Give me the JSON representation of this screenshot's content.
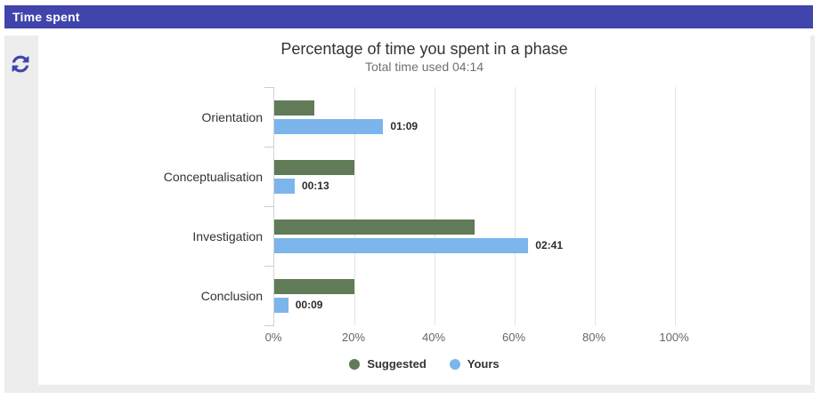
{
  "header": {
    "title": "Time spent"
  },
  "toolbar": {
    "refresh_icon": "refresh-icon"
  },
  "colors": {
    "header_bg": "#4044ab",
    "accent": "#4044ab",
    "panel_gray": "#ededed",
    "suggested": "#617b58",
    "yours": "#7cb5ec",
    "gridline": "#e4e4e4",
    "axis_line": "#d4d4d4"
  },
  "chart_data": {
    "type": "bar",
    "title": "Percentage of time you spent in a phase",
    "subtitle": "Total time used 04:14",
    "total_time": "04:14",
    "categories": [
      "Orientation",
      "Conceptualisation",
      "Investigation",
      "Conclusion"
    ],
    "series": [
      {
        "name": "Suggested",
        "color": "#617b58",
        "values": [
          10,
          20,
          50,
          20
        ]
      },
      {
        "name": "Yours",
        "color": "#7cb5ec",
        "values": [
          27.2,
          5.1,
          63.4,
          3.5
        ],
        "labels": [
          "01:09",
          "00:13",
          "02:41",
          "00:09"
        ]
      }
    ],
    "xlim": [
      0,
      100
    ],
    "x_ticks": [
      0,
      20,
      40,
      60,
      80,
      100
    ],
    "x_tick_labels": [
      "0%",
      "20%",
      "40%",
      "60%",
      "80%",
      "100%"
    ],
    "grid": true,
    "legend_position": "bottom-center"
  }
}
